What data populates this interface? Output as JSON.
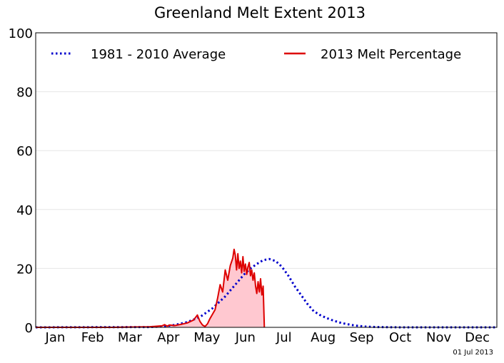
{
  "chart_data": {
    "type": "line",
    "title": "Greenland Melt Extent 2013",
    "xlabel": "",
    "ylabel": "",
    "ylim": [
      0,
      100
    ],
    "yticks": [
      "0",
      "20",
      "40",
      "60",
      "80",
      "100"
    ],
    "xlim": [
      0,
      365
    ],
    "months": [
      "Jan",
      "Feb",
      "Mar",
      "Apr",
      "May",
      "Jun",
      "Jul",
      "Aug",
      "Sep",
      "Oct",
      "Nov",
      "Dec"
    ],
    "grid": true,
    "legend": "top",
    "date_stamp": "01 Jul 2013",
    "series": [
      {
        "name": "1981 - 2010 Average",
        "style": "dotted",
        "color": "#0000cc",
        "x": [
          0,
          90,
          100,
          110,
          120,
          130,
          140,
          150,
          155,
          160,
          165,
          170,
          175,
          180,
          185,
          190,
          195,
          200,
          205,
          210,
          215,
          220,
          225,
          230,
          235,
          240,
          245,
          250,
          255,
          260,
          265,
          270,
          280,
          290,
          300,
          320,
          340,
          365
        ],
        "y": [
          0,
          0.1,
          0.3,
          0.8,
          1.8,
          3.5,
          6.5,
          10.5,
          13,
          15.5,
          18,
          20,
          21.5,
          22.8,
          23.2,
          22.5,
          20.5,
          17.5,
          14,
          11,
          8,
          5.5,
          4.2,
          3.2,
          2.4,
          1.7,
          1.2,
          0.8,
          0.5,
          0.3,
          0.2,
          0.1,
          0.05,
          0,
          0,
          0,
          0,
          0
        ]
      },
      {
        "name": "2013 Melt Percentage",
        "style": "solid",
        "color": "#dd0000",
        "fill": "#ffc8d0",
        "x": [
          0,
          30,
          60,
          90,
          100,
          102,
          104,
          106,
          110,
          115,
          120,
          125,
          128,
          130,
          132,
          134,
          136,
          138,
          140,
          142,
          144,
          146,
          148,
          150,
          152,
          154,
          156,
          157,
          158,
          159,
          160,
          161,
          162,
          163,
          164,
          165,
          166,
          167,
          168,
          169,
          170,
          171,
          172,
          173,
          174,
          175,
          176,
          177,
          178,
          179,
          180,
          181
        ],
        "y": [
          0,
          0,
          0,
          0.2,
          0.5,
          0.9,
          0.4,
          0.8,
          0.6,
          1.0,
          1.5,
          2.5,
          4.2,
          2.0,
          0.8,
          0.3,
          1.2,
          3.0,
          4.5,
          6.0,
          10.0,
          14.5,
          12.0,
          19.5,
          16.0,
          21.0,
          23.5,
          26.5,
          24.5,
          19.5,
          25.0,
          20.0,
          22.5,
          18.5,
          24.0,
          19.0,
          21.5,
          18.0,
          20.5,
          22.0,
          17.5,
          19.5,
          16.0,
          18.5,
          14.0,
          11.5,
          15.5,
          12.0,
          16.5,
          11.0,
          14.0,
          0
        ]
      }
    ]
  }
}
